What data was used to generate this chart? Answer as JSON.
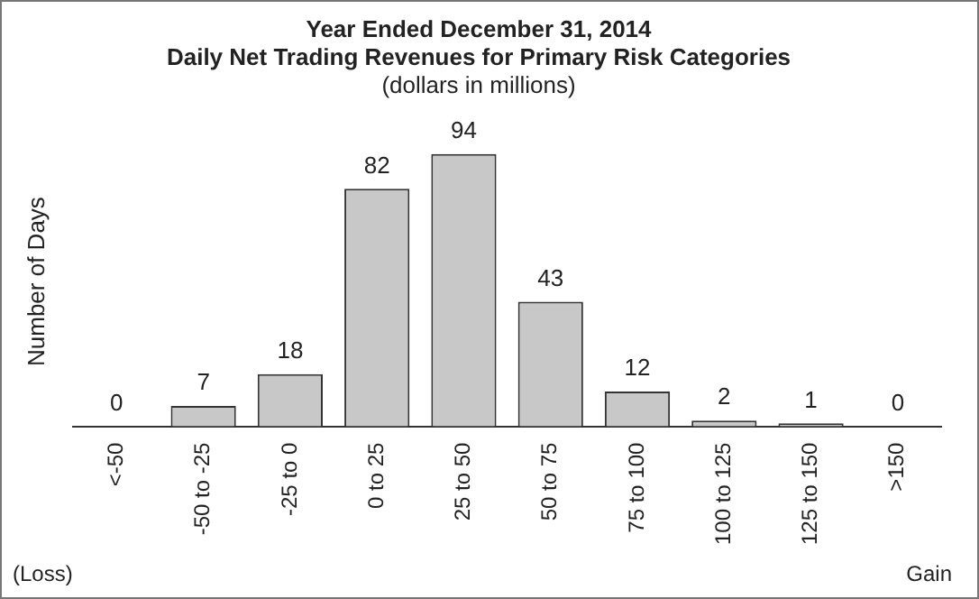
{
  "chart_data": {
    "type": "bar",
    "title": [
      "Year Ended December 31, 2014",
      "Daily Net Trading Revenues for Primary Risk Categories"
    ],
    "subtitle": "(dollars in millions)",
    "ylabel": "Number of Days",
    "categories": [
      "<-50",
      "-50 to -25",
      "-25 to 0",
      "0 to 25",
      "25 to 50",
      "50 to 75",
      "75 to 100",
      "100 to 125",
      "125 to 150",
      ">150"
    ],
    "values": [
      0,
      7,
      18,
      82,
      94,
      43,
      12,
      2,
      1,
      0
    ],
    "color": "#c8c8c8",
    "data_labels": true,
    "tick_labels": "x",
    "grid": false,
    "legend": false,
    "annotations": [
      "(Loss)",
      "Gain"
    ]
  }
}
